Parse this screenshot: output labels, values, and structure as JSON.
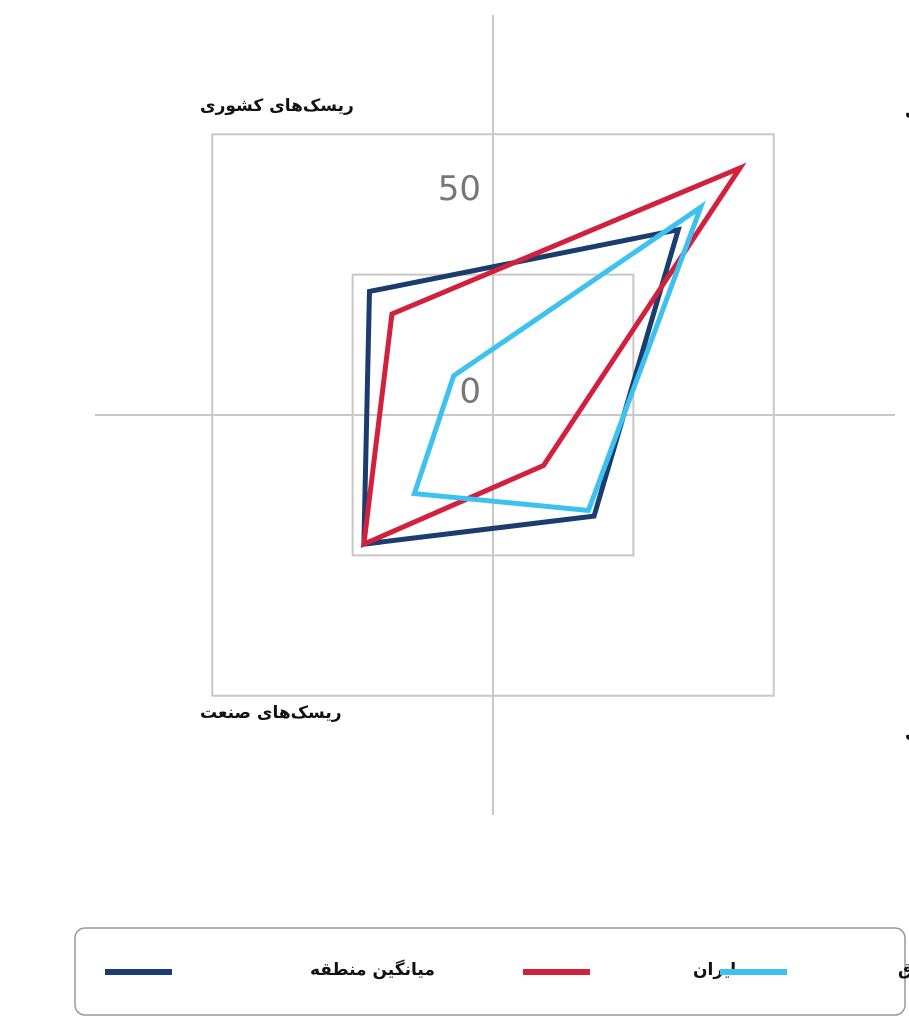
{
  "chart_data": {
    "type": "radar",
    "categories": [
      "بازده‌های صنعت",
      "بازده‌های کشوری",
      "ریسک‌های صنعت",
      "ریسک‌های کشوری"
    ],
    "series": [
      {
        "name": "میانگین منطقه",
        "color": "#1b3c6e",
        "values": [
          33,
          18,
          23,
          22
        ]
      },
      {
        "name": "ایران",
        "color": "#d2213d",
        "values": [
          44,
          9,
          23,
          18
        ]
      },
      {
        "name": "عراق",
        "color": "#3dc1ee",
        "values": [
          37,
          17,
          14,
          7
        ]
      }
    ],
    "ylim": [
      0,
      50
    ],
    "yticks": [
      0,
      50
    ],
    "grid": true
  }
}
